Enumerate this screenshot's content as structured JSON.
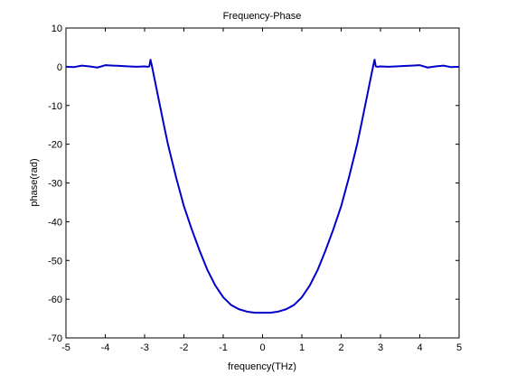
{
  "chart_data": {
    "type": "line",
    "title": "Frequency-Phase",
    "xlabel": "frequency(THz)",
    "ylabel": "phase(rad)",
    "xlim": [
      -5,
      5
    ],
    "ylim": [
      -70,
      10
    ],
    "xticks": [
      -5,
      -4,
      -3,
      -2,
      -1,
      0,
      1,
      2,
      3,
      4,
      5
    ],
    "yticks": [
      10,
      0,
      -10,
      -20,
      -30,
      -40,
      -50,
      -60,
      -70
    ],
    "grid": false,
    "legend": "none",
    "series": [
      {
        "color": "#0000cc",
        "x": [
          -5,
          -4.8,
          -4.6,
          -4.4,
          -4.2,
          -4.0,
          -3.8,
          -3.6,
          -3.4,
          -3.2,
          -3.0,
          -2.92,
          -2.88,
          -2.85,
          -2.82,
          -2.78,
          -2.7,
          -2.6,
          -2.5,
          -2.4,
          -2.2,
          -2.0,
          -1.8,
          -1.6,
          -1.4,
          -1.2,
          -1.0,
          -0.8,
          -0.6,
          -0.4,
          -0.2,
          0,
          0.2,
          0.4,
          0.6,
          0.8,
          1.0,
          1.2,
          1.4,
          1.6,
          1.8,
          2.0,
          2.2,
          2.4,
          2.5,
          2.6,
          2.7,
          2.78,
          2.82,
          2.85,
          2.88,
          2.92,
          3.0,
          3.2,
          3.4,
          3.6,
          3.8,
          4.0,
          4.2,
          4.4,
          4.6,
          4.8,
          5.0
        ],
        "y": [
          0,
          -0.1,
          0.3,
          0.1,
          -0.2,
          0.4,
          0.3,
          0.2,
          0.1,
          0.0,
          0.1,
          0.0,
          0.1,
          1.8,
          0.5,
          -1.5,
          -5.5,
          -10.5,
          -15.5,
          -20.3,
          -28.5,
          -36.0,
          -42.0,
          -47.5,
          -52.5,
          -56.5,
          -59.5,
          -61.5,
          -62.6,
          -63.2,
          -63.5,
          -63.5,
          -63.5,
          -63.2,
          -62.6,
          -61.5,
          -59.5,
          -56.5,
          -52.5,
          -47.5,
          -42.0,
          -36.0,
          -28.5,
          -20.3,
          -15.5,
          -10.5,
          -5.5,
          -1.5,
          0.5,
          1.8,
          0.1,
          0.0,
          0.1,
          0.0,
          0.1,
          0.2,
          0.3,
          0.4,
          -0.2,
          0.1,
          0.3,
          -0.1,
          0
        ]
      }
    ]
  }
}
